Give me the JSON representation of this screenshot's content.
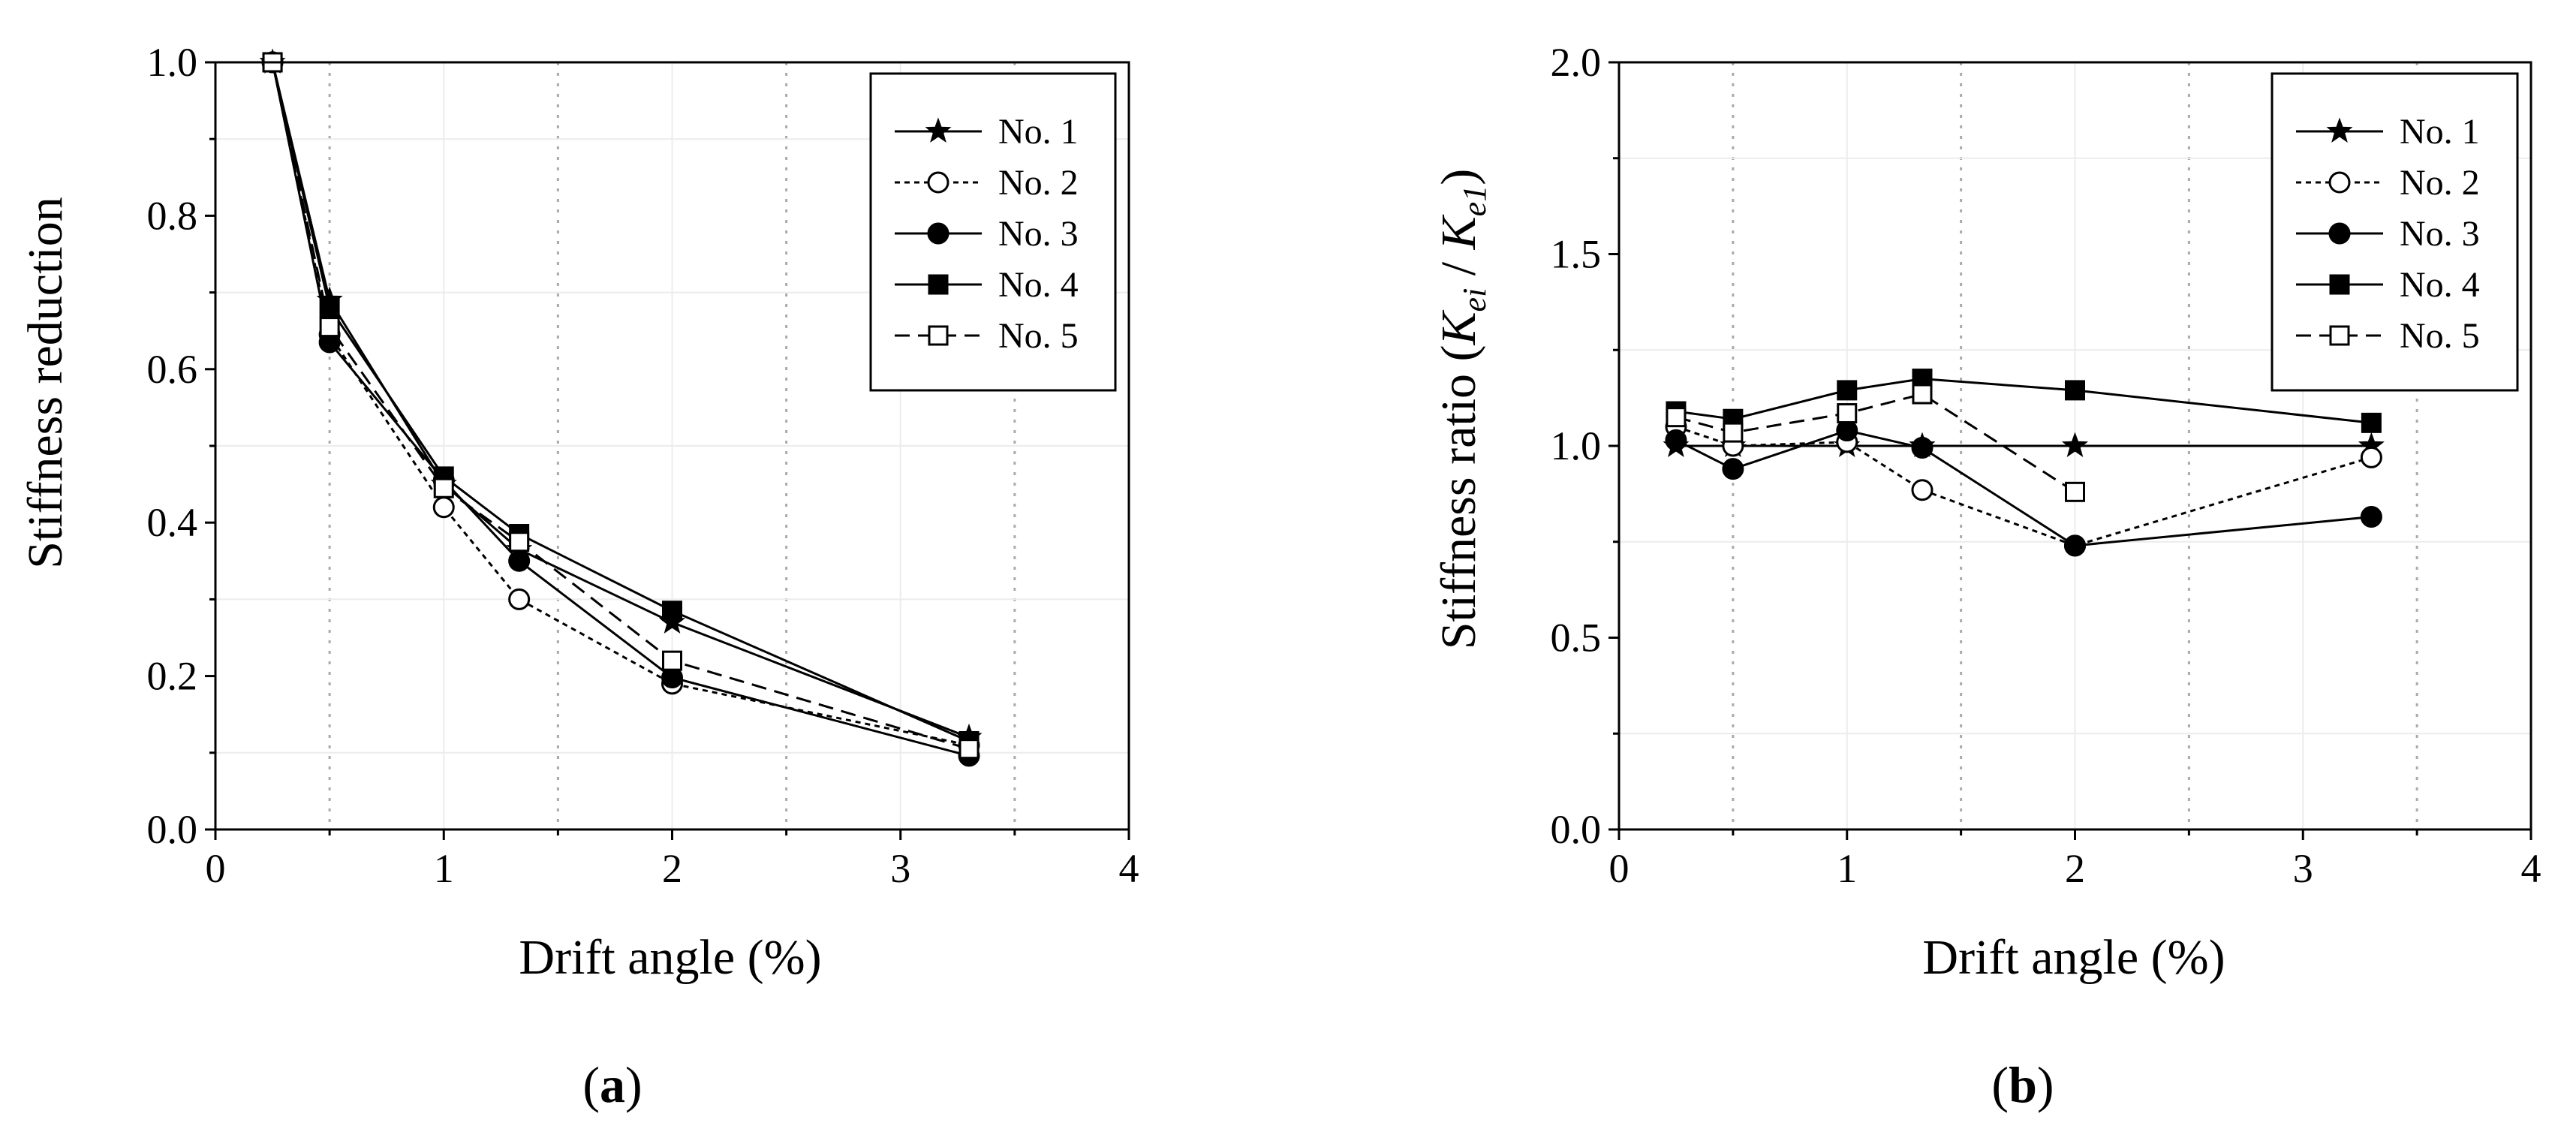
{
  "chart_data": [
    {
      "id": "a",
      "type": "line",
      "panel_label": "(a)",
      "panel_label_parts": [
        "(",
        "a",
        ")"
      ],
      "xlabel": "Drift angle (%)",
      "ylabel": "Stiffness reduction",
      "xlim": [
        0,
        4
      ],
      "ylim": [
        0,
        1.0
      ],
      "xticks": [
        0,
        1,
        2,
        3,
        4
      ],
      "xtick_labels": [
        "0",
        "1",
        "2",
        "3",
        "4"
      ],
      "yticks": [
        0,
        0.2,
        0.4,
        0.6,
        0.8,
        1.0
      ],
      "ytick_labels": [
        "0.0",
        "0.2",
        "0.4",
        "0.6",
        "0.8",
        "1.0"
      ],
      "x_gridlines": [
        0.5,
        1.5,
        2.5,
        3.5
      ],
      "legend": {
        "position": "top-right"
      },
      "series": [
        {
          "name": "No. 1",
          "marker": "star",
          "line": "solid",
          "x": [
            0.25,
            0.5,
            1.0,
            1.33,
            2.0,
            3.3
          ],
          "y": [
            1.0,
            0.69,
            0.45,
            0.365,
            0.27,
            0.12
          ]
        },
        {
          "name": "No. 2",
          "marker": "circle-open",
          "line": "dotted",
          "x": [
            0.25,
            0.5,
            1.0,
            1.33,
            2.0,
            3.3
          ],
          "y": [
            1.0,
            0.645,
            0.42,
            0.3,
            0.19,
            0.11
          ]
        },
        {
          "name": "No. 3",
          "marker": "circle-filled",
          "line": "solid",
          "x": [
            0.25,
            0.5,
            1.0,
            1.33,
            2.0,
            3.3
          ],
          "y": [
            1.0,
            0.635,
            0.455,
            0.35,
            0.198,
            0.096
          ]
        },
        {
          "name": "No. 4",
          "marker": "square-filled",
          "line": "solid",
          "x": [
            0.25,
            0.5,
            1.0,
            1.33,
            2.0,
            3.3
          ],
          "y": [
            1.0,
            0.68,
            0.46,
            0.385,
            0.285,
            0.115
          ]
        },
        {
          "name": "No. 5",
          "marker": "square-open",
          "line": "dashed",
          "x": [
            0.25,
            0.5,
            1.0,
            1.33,
            2.0,
            3.3
          ],
          "y": [
            1.0,
            0.655,
            0.445,
            0.375,
            0.22,
            0.105
          ]
        }
      ]
    },
    {
      "id": "b",
      "type": "line",
      "panel_label": "(b)",
      "panel_label_parts": [
        "(",
        "b",
        ")"
      ],
      "xlabel": "Drift angle (%)",
      "ylabel": "Stiffness ratio (Kei / Ke1)",
      "ylabel_parts": {
        "prefix": "Stiffness ratio (",
        "var": "K",
        "sub1": "ei",
        "mid": " / ",
        "sub2": "e1",
        "suffix": ")"
      },
      "xlim": [
        0,
        4
      ],
      "ylim": [
        0,
        2.0
      ],
      "xticks": [
        0,
        1,
        2,
        3,
        4
      ],
      "xtick_labels": [
        "0",
        "1",
        "2",
        "3",
        "4"
      ],
      "yticks": [
        0,
        0.5,
        1.0,
        1.5,
        2.0
      ],
      "ytick_labels": [
        "0.0",
        "0.5",
        "1.0",
        "1.5",
        "2.0"
      ],
      "x_gridlines": [
        0.5,
        1.5,
        2.5,
        3.5
      ],
      "legend": {
        "position": "top-right"
      },
      "series": [
        {
          "name": "No. 1",
          "marker": "star",
          "line": "solid",
          "x": [
            0.25,
            0.5,
            1.0,
            1.33,
            2.0,
            3.3
          ],
          "y": [
            1.0,
            1.0,
            1.0,
            1.0,
            1.0,
            1.0
          ]
        },
        {
          "name": "No. 2",
          "marker": "circle-open",
          "line": "dotted",
          "x": [
            0.25,
            0.5,
            1.0,
            1.33,
            2.0,
            3.3
          ],
          "y": [
            1.05,
            1.0,
            1.01,
            0.885,
            0.74,
            0.97
          ]
        },
        {
          "name": "No. 3",
          "marker": "circle-filled",
          "line": "solid",
          "x": [
            0.25,
            0.5,
            1.0,
            1.33,
            2.0,
            3.3
          ],
          "y": [
            1.015,
            0.94,
            1.04,
            0.995,
            0.74,
            0.815
          ]
        },
        {
          "name": "No. 4",
          "marker": "square-filled",
          "line": "solid",
          "x": [
            0.25,
            0.5,
            1.0,
            1.33,
            2.0,
            3.3
          ],
          "y": [
            1.09,
            1.07,
            1.145,
            1.175,
            1.145,
            1.06
          ]
        },
        {
          "name": "No. 5",
          "marker": "square-open",
          "line": "dashed",
          "x": [
            0.25,
            0.5,
            1.0,
            1.33,
            2.0
          ],
          "y": [
            1.075,
            1.035,
            1.085,
            1.135,
            0.88
          ]
        }
      ]
    }
  ]
}
